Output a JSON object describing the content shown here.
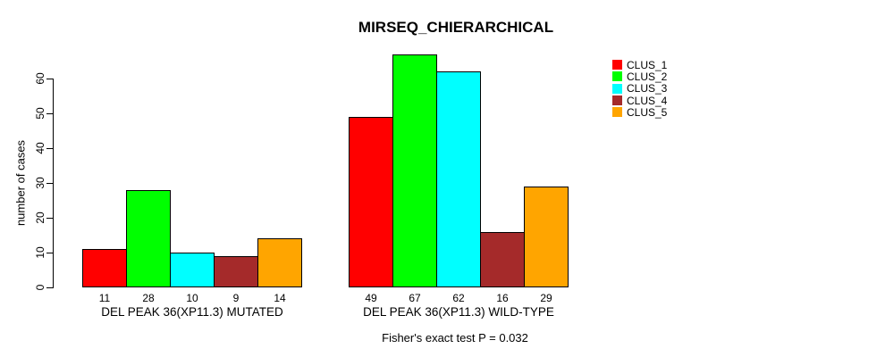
{
  "chart_data": {
    "type": "bar",
    "title": "MIRSEQ_CHIERARCHICAL",
    "ylabel": "number of cases",
    "xlabel": "",
    "annotation": "Fisher's exact test P = 0.032",
    "yticks": [
      0,
      10,
      20,
      30,
      40,
      50,
      60
    ],
    "ylim": [
      0,
      67
    ],
    "grid": false,
    "legend_position": "top-right",
    "groups": [
      {
        "label": "DEL PEAK 36(XP11.3) MUTATED",
        "values": [
          11,
          28,
          10,
          9,
          14
        ]
      },
      {
        "label": "DEL PEAK 36(XP11.3) WILD-TYPE",
        "values": [
          49,
          67,
          62,
          16,
          29
        ]
      }
    ],
    "series": [
      {
        "name": "CLUS_1",
        "color": "#FF0000",
        "values": [
          11,
          49
        ]
      },
      {
        "name": "CLUS_2",
        "color": "#00FF00",
        "values": [
          28,
          67
        ]
      },
      {
        "name": "CLUS_3",
        "color": "#00FFFF",
        "values": [
          10,
          62
        ]
      },
      {
        "name": "CLUS_4",
        "color": "#A52A2A",
        "values": [
          9,
          16
        ]
      },
      {
        "name": "CLUS_5",
        "color": "#FFA500",
        "values": [
          14,
          29
        ]
      }
    ]
  }
}
